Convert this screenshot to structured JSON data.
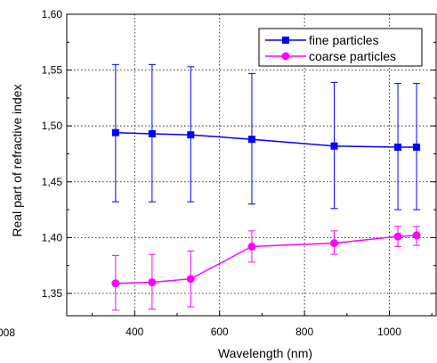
{
  "chart_data": {
    "type": "line",
    "title": "",
    "xlabel": "Wavelength  (nm)",
    "ylabel": "Real part of refractive index",
    "xlim": [
      240,
      1110
    ],
    "ylim": [
      1.33,
      1.6
    ],
    "x_ticks": [
      400,
      600,
      800,
      1000
    ],
    "x_tick_labels": [
      "400",
      "600",
      "800",
      "1000"
    ],
    "y_ticks": [
      1.35,
      1.4,
      1.45,
      1.5,
      1.55,
      1.6
    ],
    "y_tick_labels": [
      "1,35",
      "1,40",
      "1,45",
      "1,50",
      "1,55",
      "1,60"
    ],
    "grid": true,
    "legend_position": "top-right",
    "clipped_left_label": "008",
    "series": [
      {
        "name": "fine particles",
        "color": "#0000ff",
        "marker": "square",
        "x": [
          355,
          441,
          532,
          676,
          870,
          1020,
          1064
        ],
        "y": [
          1.494,
          1.493,
          1.492,
          1.488,
          1.482,
          1.481,
          1.481
        ],
        "err_low": [
          1.432,
          1.432,
          1.432,
          1.43,
          1.426,
          1.425,
          1.425
        ],
        "err_high": [
          1.555,
          1.555,
          1.553,
          1.547,
          1.539,
          1.538,
          1.538
        ]
      },
      {
        "name": "coarse particles",
        "color": "#ff00ff",
        "marker": "circle",
        "x": [
          355,
          441,
          532,
          676,
          870,
          1020,
          1064
        ],
        "y": [
          1.359,
          1.36,
          1.363,
          1.392,
          1.395,
          1.401,
          1.402
        ],
        "err_low": [
          1.335,
          1.336,
          1.338,
          1.378,
          1.385,
          1.392,
          1.393
        ],
        "err_high": [
          1.384,
          1.385,
          1.388,
          1.406,
          1.406,
          1.41,
          1.41
        ]
      }
    ]
  }
}
